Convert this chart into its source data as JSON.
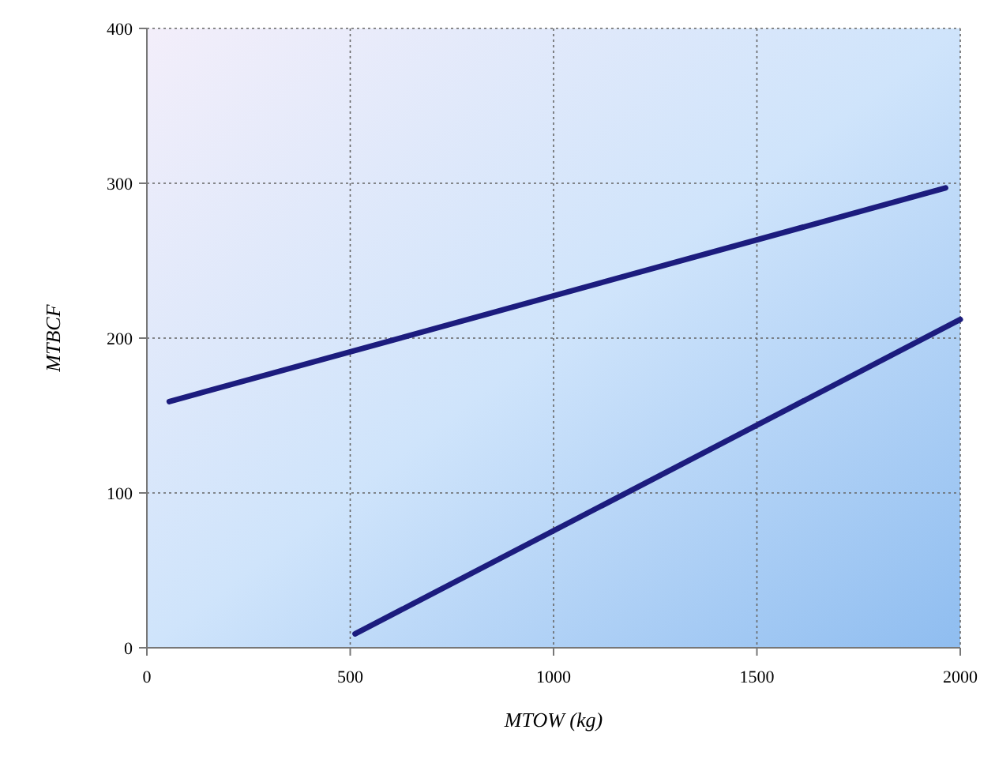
{
  "chart_data": {
    "type": "line",
    "xlabel": "MTOW (kg)",
    "ylabel": "MTBCF",
    "xlim": [
      0,
      2000
    ],
    "xticks": [
      0,
      500,
      1000,
      1500,
      2000
    ],
    "ylim": [
      0,
      400
    ],
    "yticks": [
      0,
      100,
      200,
      300,
      400
    ],
    "grid": true,
    "marker": "none",
    "line_style": "solid",
    "series": [
      {
        "color": "#1c1c7e",
        "x": [
          55,
          1964
        ],
        "values": [
          159,
          297
        ]
      },
      {
        "color": "#1c1c7e",
        "x": [
          512,
          2000
        ],
        "values": [
          9,
          212
        ]
      }
    ]
  }
}
